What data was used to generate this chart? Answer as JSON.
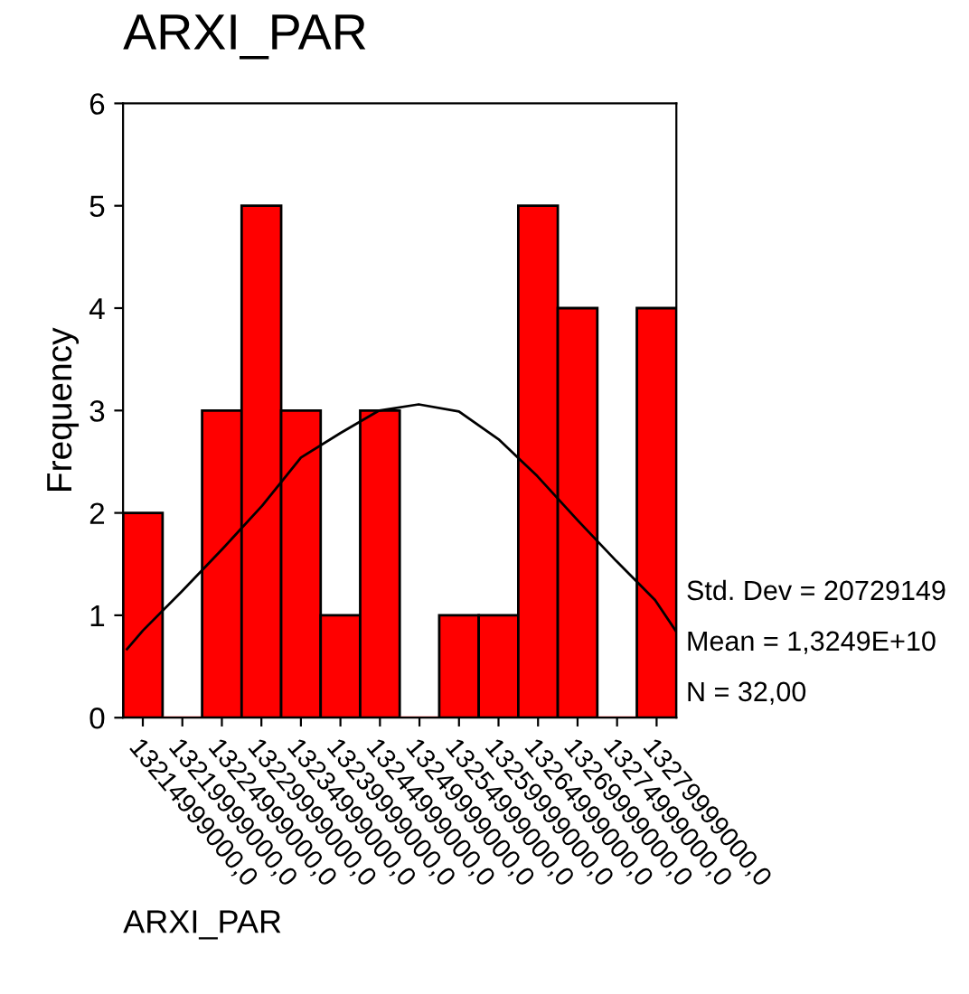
{
  "chart_data": {
    "type": "histogram",
    "title": "ARXI_PAR",
    "xlabel": "ARXI_PAR",
    "ylabel": "Frequency",
    "bins": [
      13212499000,
      13217499000,
      13222499000,
      13227499000,
      13232499000,
      13237499000,
      13242499000,
      13247499000,
      13252499000,
      13257499000,
      13262499000,
      13267499000,
      13272499000,
      13277499000,
      13282499000
    ],
    "values": [
      2,
      0,
      3,
      5,
      3,
      1,
      3,
      0,
      1,
      1,
      5,
      4,
      0,
      4
    ],
    "color": "#ff0000",
    "series": [
      {
        "type": "line",
        "color": "#000000",
        "x": [
          13213000000,
          13215000000,
          13219900000,
          13225100000,
          13230100000,
          13235000000,
          13240000000,
          13244900000,
          13249900000,
          13255000000,
          13260000000,
          13264900000,
          13270100000,
          13274900000,
          13279800000,
          13282400000
        ],
        "values": [
          0.67,
          0.85,
          1.23,
          1.65,
          2.07,
          2.54,
          2.78,
          3.0,
          3.06,
          2.99,
          2.72,
          2.36,
          1.92,
          1.53,
          1.15,
          0.85
        ]
      }
    ],
    "xlim": [
      13212499000,
      13282499000
    ],
    "xticks": [
      {
        "value": 13214999000,
        "label": "13214999000,0"
      },
      {
        "value": 13219999000,
        "label": "13219999000,0"
      },
      {
        "value": 13224999000,
        "label": "13224999000,0"
      },
      {
        "value": 13229999000,
        "label": "13229999000,0"
      },
      {
        "value": 13234999000,
        "label": "13234999000,0"
      },
      {
        "value": 13239999000,
        "label": "13239999000,0"
      },
      {
        "value": 13244999000,
        "label": "13244999000,0"
      },
      {
        "value": 13249999000,
        "label": "13249999000,0"
      },
      {
        "value": 13254999000,
        "label": "13254999000,0"
      },
      {
        "value": 13259999000,
        "label": "13259999000,0"
      },
      {
        "value": 13264999000,
        "label": "13264999000,0"
      },
      {
        "value": 13269999000,
        "label": "13269999000,0"
      },
      {
        "value": 13274999000,
        "label": "13274999000,0"
      },
      {
        "value": 13279999000,
        "label": "13279999000,0"
      }
    ],
    "ylim": [
      0,
      6
    ],
    "yticks": [
      0,
      1,
      2,
      3,
      4,
      5,
      6
    ],
    "annotations": [
      "Std. Dev = 20729149",
      "Mean = 1,3249E+10",
      "N = 32,00"
    ]
  }
}
